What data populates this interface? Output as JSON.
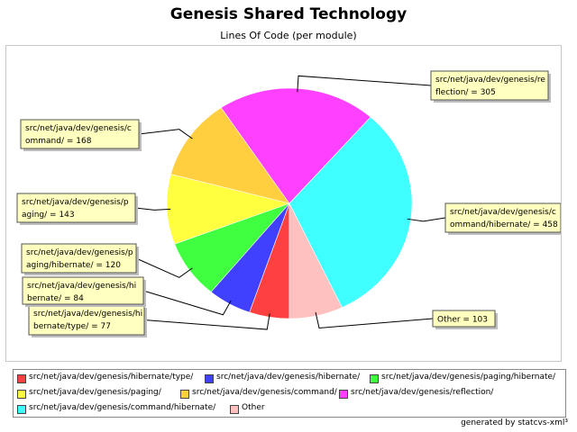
{
  "chart_data": {
    "type": "pie",
    "title": "Genesis Shared Technology",
    "subtitle": "Lines Of Code (per module)",
    "slices": [
      {
        "label": "src/net/java/dev/genesis/hibernate/type/",
        "value": 77,
        "color": "#ff4040",
        "callout": [
          "src/net/java/dev/genesis/hi",
          "bernate/type/ = 77"
        ]
      },
      {
        "label": "src/net/java/dev/genesis/hibernate/",
        "value": 84,
        "color": "#4040ff",
        "callout": [
          "src/net/java/dev/genesis/hi",
          "bernate/ = 84"
        ]
      },
      {
        "label": "src/net/java/dev/genesis/paging/hibernate/",
        "value": 120,
        "color": "#40ff40",
        "callout": [
          "src/net/java/dev/genesis/p",
          "aging/hibernate/ = 120"
        ]
      },
      {
        "label": "src/net/java/dev/genesis/paging/",
        "value": 143,
        "color": "#ffff40",
        "callout": [
          "src/net/java/dev/genesis/p",
          "aging/ = 143"
        ]
      },
      {
        "label": "src/net/java/dev/genesis/command/",
        "value": 168,
        "color": "#ffcf40",
        "callout": [
          "src/net/java/dev/genesis/c",
          "ommand/ = 168"
        ]
      },
      {
        "label": "src/net/java/dev/genesis/reflection/",
        "value": 305,
        "color": "#ff40ff",
        "callout": [
          "src/net/java/dev/genesis/re",
          "flection/ = 305"
        ]
      },
      {
        "label": "src/net/java/dev/genesis/command/hibernate/",
        "value": 458,
        "color": "#40ffff",
        "callout": [
          "src/net/java/dev/genesis/c",
          "ommand/hibernate/ = 458"
        ]
      },
      {
        "label": "Other",
        "value": 103,
        "color": "#ffc0c0",
        "callout": [
          "Other = 103"
        ]
      }
    ],
    "legend_placement": "bottom"
  },
  "footer": "generated by statcvs-xml³"
}
